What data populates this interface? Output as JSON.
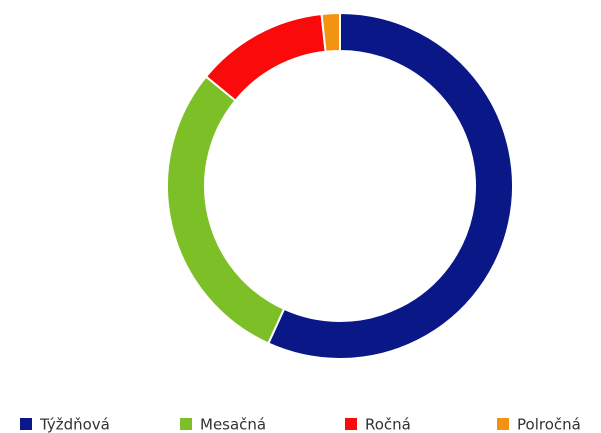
{
  "chart_data": {
    "type": "donut",
    "categories": [
      "Týždňová",
      "Mesačná",
      "Ročná",
      "Polročná"
    ],
    "values": [
      56.8,
      29.1,
      12.4,
      1.7
    ],
    "colors": [
      "#0a1787",
      "#7dbf26",
      "#fa0a0a",
      "#f29311"
    ],
    "legend": "bottom"
  }
}
